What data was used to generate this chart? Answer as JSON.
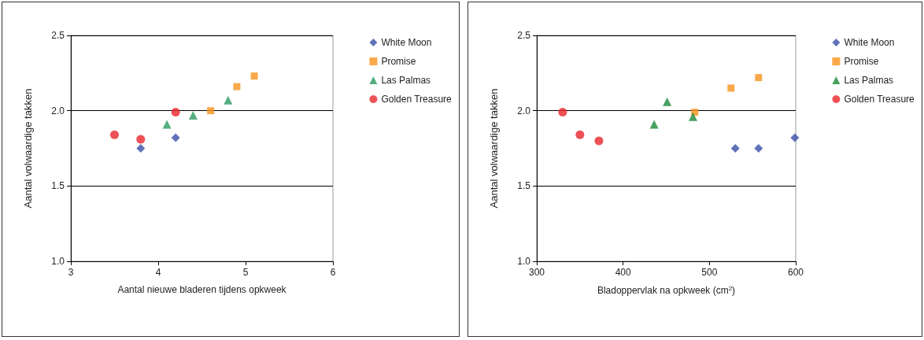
{
  "chart_data": [
    {
      "type": "scatter",
      "xlabel": "Aantal nieuwe bladeren tijdens opkweek",
      "ylabel": "Aantal volwaardige takken",
      "xlim": [
        3,
        6
      ],
      "xticks": [
        3,
        4,
        5,
        6
      ],
      "ylim": [
        1.0,
        2.5
      ],
      "yticks": [
        {
          "value": 1.0,
          "label": "1.0"
        },
        {
          "value": 1.5,
          "label": "1.5"
        },
        {
          "value": 2.0,
          "label": "2.0"
        },
        {
          "value": 2.5,
          "label": "2.5"
        }
      ],
      "grid": "y",
      "legend": "right",
      "series": [
        {
          "name": "White Moon",
          "color": "#3a4fa8",
          "marker": "diamond",
          "x": [
            3.8,
            4.2
          ],
          "values": [
            1.75,
            1.82
          ]
        },
        {
          "name": "Promise",
          "color": "#f7941d",
          "marker": "square",
          "x": [
            4.6,
            4.9,
            5.1
          ],
          "values": [
            2.0,
            2.16,
            2.23
          ]
        },
        {
          "name": "Las Palmas",
          "color": "#2a9a60",
          "marker": "triangle",
          "x": [
            4.1,
            4.4,
            4.8
          ],
          "values": [
            1.91,
            1.97,
            2.07
          ]
        },
        {
          "name": "Golden Treasure",
          "color": "#e8262b",
          "marker": "circle",
          "x": [
            3.5,
            3.8,
            4.2
          ],
          "values": [
            1.84,
            1.81,
            1.99
          ]
        }
      ]
    },
    {
      "type": "scatter",
      "xlabel": "Bladoppervlak na opkweek (cm$^{2}$)",
      "ylabel": "Aantal volwaardige takken",
      "xlim": [
        300,
        600
      ],
      "xticks": [
        300,
        400,
        500,
        600
      ],
      "ylim": [
        1.0,
        2.5
      ],
      "yticks": [
        {
          "value": 1.0,
          "label": "1.0"
        },
        {
          "value": 1.5,
          "label": "1.5"
        },
        {
          "value": 2.0,
          "label": "2.0"
        },
        {
          "value": 2.5,
          "label": "2.5"
        }
      ],
      "grid": "y",
      "legend": "right",
      "series": [
        {
          "name": "White Moon",
          "color": "#3a4fa8",
          "marker": "diamond",
          "x": [
            530,
            557,
            599
          ],
          "values": [
            1.75,
            1.75,
            1.82
          ]
        },
        {
          "name": "Promise",
          "color": "#f7941d",
          "marker": "square",
          "x": [
            483,
            525,
            557
          ],
          "values": [
            1.99,
            2.15,
            2.22
          ]
        },
        {
          "name": "Las Palmas",
          "color": "#1a8a3a",
          "marker": "triangle",
          "x": [
            436,
            451,
            481
          ],
          "values": [
            1.91,
            2.06,
            1.96
          ]
        },
        {
          "name": "Golden Treasure",
          "color": "#e8262b",
          "marker": "circle",
          "x": [
            330,
            350,
            372
          ],
          "values": [
            1.99,
            1.84,
            1.8
          ]
        }
      ]
    }
  ]
}
